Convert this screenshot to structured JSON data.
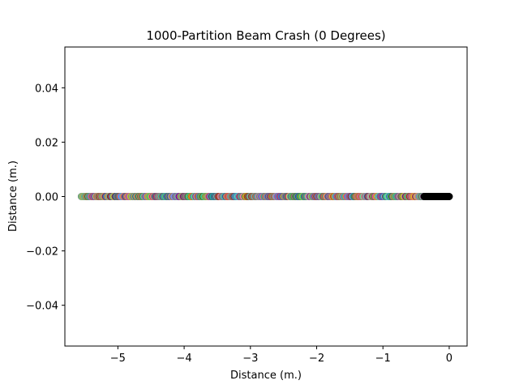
{
  "chart_data": {
    "type": "scatter",
    "title": "1000-Partition Beam Crash (0 Degrees)",
    "xlabel": "Distance (m.)",
    "ylabel": "Distance (m.)",
    "xlim": [
      -5.8,
      0.27
    ],
    "ylim": [
      -0.055,
      0.055
    ],
    "x_ticks": [
      -5,
      -4,
      -3,
      -2,
      -1,
      0
    ],
    "x_tick_labels": [
      "−5",
      "−4",
      "−3",
      "−2",
      "−1",
      "0"
    ],
    "y_ticks": [
      -0.04,
      -0.02,
      0.0,
      0.02,
      0.04
    ],
    "y_tick_labels": [
      "−0.04",
      "−0.02",
      "0.00",
      "0.02",
      "0.04"
    ],
    "grid": false,
    "legend": "none",
    "series": [
      {
        "x_start": -5.55,
        "x_end": 0.0,
        "y": 0.0,
        "count": 1000,
        "dense_black_from": -0.38,
        "palette": [
          "#17becf",
          "#6ee7d8",
          "#ff7f50",
          "#2c3e50",
          "#f4d35e",
          "#9b59b6",
          "#3b82f6",
          "#e84393",
          "#27ae60",
          "#d35400",
          "#8e44ad",
          "#1abc9c",
          "#c0392b",
          "#f1c40f",
          "#2980b9",
          "#7f8c8d",
          "#a3e635",
          "#ef4444",
          "#6d28d9",
          "#0ea5e9",
          "#22c55e",
          "#f97316",
          "#1f2937",
          "#ec4899",
          "#84cc16",
          "#14b8a6",
          "#a16207",
          "#5b2333",
          "#60a5fa",
          "#d946ef"
        ],
        "tail_color": "#000000"
      }
    ]
  }
}
